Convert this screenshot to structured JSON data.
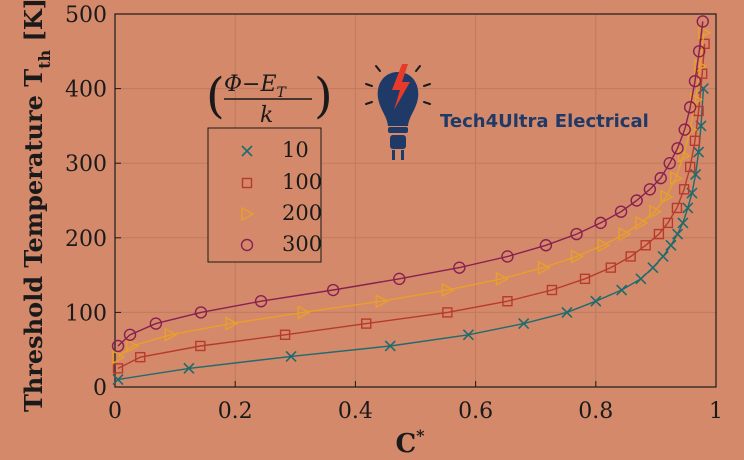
{
  "chart_data": {
    "type": "line",
    "xlabel": "C",
    "xlabel_sup": "*",
    "ylabel": "Threshold Temperature T",
    "ylabel_sub": "th",
    "ylabel_unit": " [K]",
    "xlim": [
      0,
      1
    ],
    "ylim": [
      0,
      500
    ],
    "xticks": [
      "0",
      "0.2",
      "0.4",
      "0.6",
      "0.8",
      "1"
    ],
    "yticks": [
      "0",
      "100",
      "200",
      "300",
      "400",
      "500"
    ],
    "grid": true,
    "legend_title": {
      "numerator": "Φ−E",
      "numerator_sub": "T",
      "denominator": "k"
    },
    "legend_position": "upper-left",
    "series": [
      {
        "name": "10",
        "color": "#1f6b6e",
        "marker": "x",
        "x": [
          0.005,
          0.123,
          0.293,
          0.458,
          0.588,
          0.68,
          0.752,
          0.8,
          0.843,
          0.875,
          0.895,
          0.912,
          0.925,
          0.936,
          0.945,
          0.953,
          0.96,
          0.966,
          0.971,
          0.975,
          0.979
        ],
        "y": [
          10,
          25,
          41,
          55,
          70,
          85,
          100,
          115,
          130,
          145,
          160,
          175,
          190,
          205,
          220,
          240,
          260,
          285,
          315,
          350,
          400
        ]
      },
      {
        "name": "100",
        "color": "#b83a2e",
        "marker": "square",
        "x": [
          0.005,
          0.042,
          0.142,
          0.283,
          0.418,
          0.553,
          0.653,
          0.727,
          0.782,
          0.825,
          0.858,
          0.883,
          0.905,
          0.92,
          0.935,
          0.947,
          0.957,
          0.965,
          0.971,
          0.977,
          0.981
        ],
        "y": [
          25,
          40,
          55,
          70,
          85,
          100,
          115,
          130,
          145,
          160,
          175,
          190,
          205,
          220,
          240,
          265,
          295,
          330,
          370,
          420,
          460
        ]
      },
      {
        "name": "200",
        "color": "#e8a02a",
        "marker": "triangle-right",
        "x": [
          0.005,
          0.028,
          0.092,
          0.193,
          0.313,
          0.443,
          0.553,
          0.643,
          0.713,
          0.768,
          0.812,
          0.847,
          0.875,
          0.898,
          0.917,
          0.933,
          0.946,
          0.957,
          0.966,
          0.973,
          0.98
        ],
        "y": [
          40,
          55,
          70,
          85,
          100,
          115,
          130,
          145,
          160,
          175,
          190,
          205,
          220,
          235,
          255,
          280,
          310,
          345,
          385,
          430,
          475
        ]
      },
      {
        "name": "300",
        "color": "#8a2050",
        "marker": "circle",
        "x": [
          0.005,
          0.025,
          0.068,
          0.143,
          0.243,
          0.363,
          0.473,
          0.573,
          0.653,
          0.717,
          0.768,
          0.808,
          0.842,
          0.868,
          0.89,
          0.908,
          0.923,
          0.936,
          0.948,
          0.957,
          0.965,
          0.972,
          0.978
        ],
        "y": [
          55,
          70,
          85,
          100,
          115,
          130,
          145,
          160,
          175,
          190,
          205,
          220,
          235,
          250,
          265,
          280,
          300,
          320,
          345,
          375,
          410,
          450,
          490
        ]
      }
    ]
  },
  "logo": {
    "text": "Tech4Ultra Electrical",
    "icon": "lightbulb-plug-icon",
    "colors": {
      "body": "#1f3a66",
      "bolt": "#e83a2a"
    }
  },
  "colors": {
    "background": "#d4896b",
    "grid": "#c07a5e",
    "axis": "#1a1a1a"
  }
}
